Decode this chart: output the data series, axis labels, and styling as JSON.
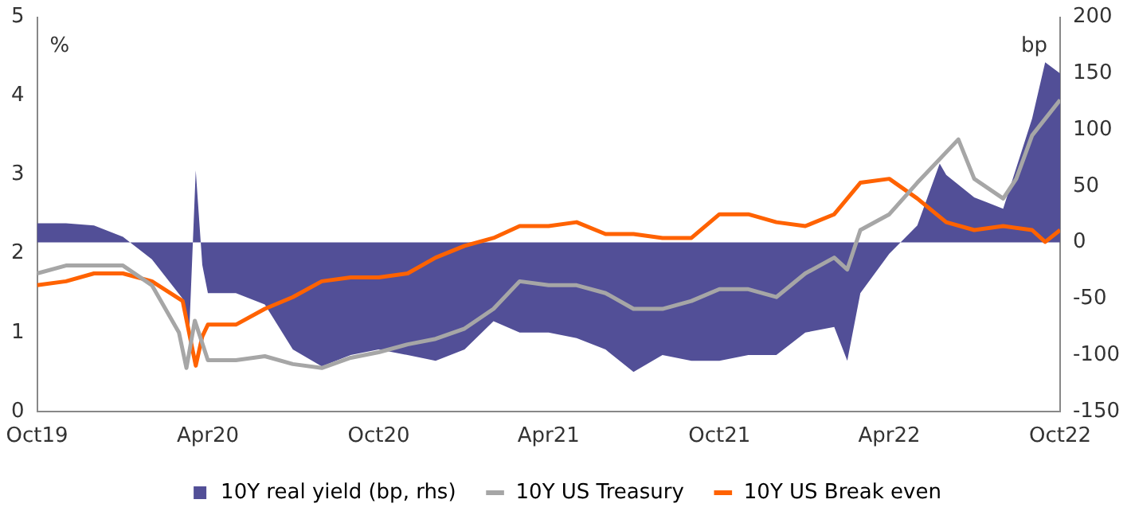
{
  "chart_data": {
    "type": "line",
    "ylabel": "%",
    "y2label": "bp",
    "xlim": [
      "2019-10-01",
      "2022-10-01"
    ],
    "xticks": [
      {
        "value": "2019-10-01",
        "label": "Oct19"
      },
      {
        "value": "2020-04-01",
        "label": "Apr20"
      },
      {
        "value": "2020-10-01",
        "label": "Oct20"
      },
      {
        "value": "2021-04-01",
        "label": "Apr21"
      },
      {
        "value": "2021-10-01",
        "label": "Oct21"
      },
      {
        "value": "2022-04-01",
        "label": "Apr22"
      },
      {
        "value": "2022-10-01",
        "label": "Oct22"
      }
    ],
    "ylim": [
      0,
      5
    ],
    "yticks": [
      0,
      1,
      2,
      3,
      4,
      5
    ],
    "y2lim": [
      -150,
      200
    ],
    "y2ticks": [
      -150,
      -100,
      -50,
      0,
      50,
      100,
      150,
      200
    ],
    "grid": false,
    "legend": "bottom",
    "series": [
      {
        "name": "10Y real yield (bp, rhs)",
        "type": "area",
        "axis": "y2",
        "color": "#524f97",
        "x": [
          "2019-10-01",
          "2019-11-01",
          "2019-12-01",
          "2020-01-01",
          "2020-02-01",
          "2020-03-05",
          "2020-03-12",
          "2020-03-19",
          "2020-03-26",
          "2020-04-01",
          "2020-05-01",
          "2020-06-01",
          "2020-07-01",
          "2020-08-01",
          "2020-09-01",
          "2020-10-01",
          "2020-11-01",
          "2020-12-01",
          "2021-01-01",
          "2021-02-01",
          "2021-03-01",
          "2021-04-01",
          "2021-05-01",
          "2021-06-01",
          "2021-07-01",
          "2021-08-01",
          "2021-09-01",
          "2021-10-01",
          "2021-11-01",
          "2021-12-01",
          "2022-01-01",
          "2022-02-01",
          "2022-02-15",
          "2022-03-01",
          "2022-04-01",
          "2022-05-01",
          "2022-05-25",
          "2022-06-01",
          "2022-07-01",
          "2022-08-01",
          "2022-09-01",
          "2022-09-15",
          "2022-10-01"
        ],
        "values": [
          17,
          17,
          15,
          5,
          -15,
          -50,
          -80,
          64,
          -20,
          -45,
          -45,
          -55,
          -95,
          -110,
          -100,
          -95,
          -100,
          -105,
          -95,
          -70,
          -80,
          -80,
          -85,
          -95,
          -115,
          -100,
          -105,
          -105,
          -100,
          -100,
          -80,
          -75,
          -105,
          -45,
          -10,
          15,
          70,
          60,
          40,
          30,
          110,
          160,
          150
        ]
      },
      {
        "name": "10Y US Treasury",
        "axis": "y",
        "color": "#a6a6a6",
        "x": [
          "2019-10-01",
          "2019-11-01",
          "2019-12-01",
          "2020-01-01",
          "2020-02-01",
          "2020-03-01",
          "2020-03-09",
          "2020-03-18",
          "2020-04-01",
          "2020-05-01",
          "2020-06-01",
          "2020-07-01",
          "2020-08-01",
          "2020-09-01",
          "2020-10-01",
          "2020-11-01",
          "2020-12-01",
          "2021-01-01",
          "2021-02-01",
          "2021-03-01",
          "2021-04-01",
          "2021-05-01",
          "2021-06-01",
          "2021-07-01",
          "2021-08-01",
          "2021-09-01",
          "2021-10-01",
          "2021-11-01",
          "2021-12-01",
          "2022-01-01",
          "2022-02-01",
          "2022-02-15",
          "2022-03-01",
          "2022-04-01",
          "2022-05-01",
          "2022-06-14",
          "2022-07-01",
          "2022-08-01",
          "2022-08-15",
          "2022-09-01",
          "2022-10-01"
        ],
        "values": [
          1.75,
          1.85,
          1.85,
          1.85,
          1.6,
          1.0,
          0.55,
          1.15,
          0.65,
          0.65,
          0.7,
          0.6,
          0.55,
          0.68,
          0.75,
          0.85,
          0.92,
          1.05,
          1.3,
          1.65,
          1.6,
          1.6,
          1.5,
          1.3,
          1.3,
          1.4,
          1.55,
          1.55,
          1.45,
          1.75,
          1.95,
          1.8,
          2.3,
          2.5,
          2.9,
          3.45,
          2.95,
          2.7,
          2.95,
          3.5,
          3.95
        ]
      },
      {
        "name": "10Y US Break even",
        "axis": "y",
        "color": "#ff6200",
        "x": [
          "2019-10-01",
          "2019-11-01",
          "2019-12-01",
          "2020-01-01",
          "2020-02-01",
          "2020-03-05",
          "2020-03-19",
          "2020-03-26",
          "2020-04-01",
          "2020-05-01",
          "2020-06-01",
          "2020-07-01",
          "2020-08-01",
          "2020-09-01",
          "2020-10-01",
          "2020-11-01",
          "2020-12-01",
          "2021-01-01",
          "2021-02-01",
          "2021-03-01",
          "2021-04-01",
          "2021-05-01",
          "2021-06-01",
          "2021-07-01",
          "2021-08-01",
          "2021-09-01",
          "2021-10-01",
          "2021-11-01",
          "2021-12-01",
          "2022-01-01",
          "2022-02-01",
          "2022-03-01",
          "2022-04-01",
          "2022-05-01",
          "2022-06-01",
          "2022-07-01",
          "2022-08-01",
          "2022-09-01",
          "2022-09-15",
          "2022-10-01"
        ],
        "values": [
          1.6,
          1.65,
          1.75,
          1.75,
          1.65,
          1.4,
          0.58,
          0.95,
          1.1,
          1.1,
          1.3,
          1.45,
          1.65,
          1.7,
          1.7,
          1.75,
          1.95,
          2.1,
          2.2,
          2.35,
          2.35,
          2.4,
          2.25,
          2.25,
          2.2,
          2.2,
          2.5,
          2.5,
          2.4,
          2.35,
          2.5,
          2.9,
          2.95,
          2.7,
          2.4,
          2.3,
          2.35,
          2.3,
          2.15,
          2.3
        ]
      }
    ]
  }
}
